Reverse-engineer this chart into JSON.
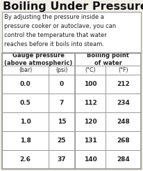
{
  "title": "Boiling Under Pressure",
  "description": "By adjusting the pressure inside a\npressure cooker or autoclave, you can\ncontrol the temperature that water\nreaches before it boils into steam.",
  "col_headers_sub": [
    "(bar)",
    "(psi)",
    "(°C)",
    "(°F)"
  ],
  "col_header_left": "Gauge pressure\n(above atmospheric)",
  "col_header_right": "Boiling point\nof water",
  "rows": [
    [
      "0.0",
      "0",
      "100",
      "212"
    ],
    [
      "0.5",
      "7",
      "112",
      "234"
    ],
    [
      "1.0",
      "15",
      "120",
      "248"
    ],
    [
      "1.8",
      "25",
      "131",
      "268"
    ],
    [
      "2.6",
      "37",
      "140",
      "284"
    ]
  ],
  "bg_color": "#f2efe9",
  "title_color": "#111111",
  "text_color": "#222222",
  "border_color": "#999999",
  "cell_bg": "#ffffff",
  "title_fontsize": 11.5,
  "desc_fontsize": 6.0,
  "header_fontsize": 6.0,
  "cell_fontsize": 6.5
}
